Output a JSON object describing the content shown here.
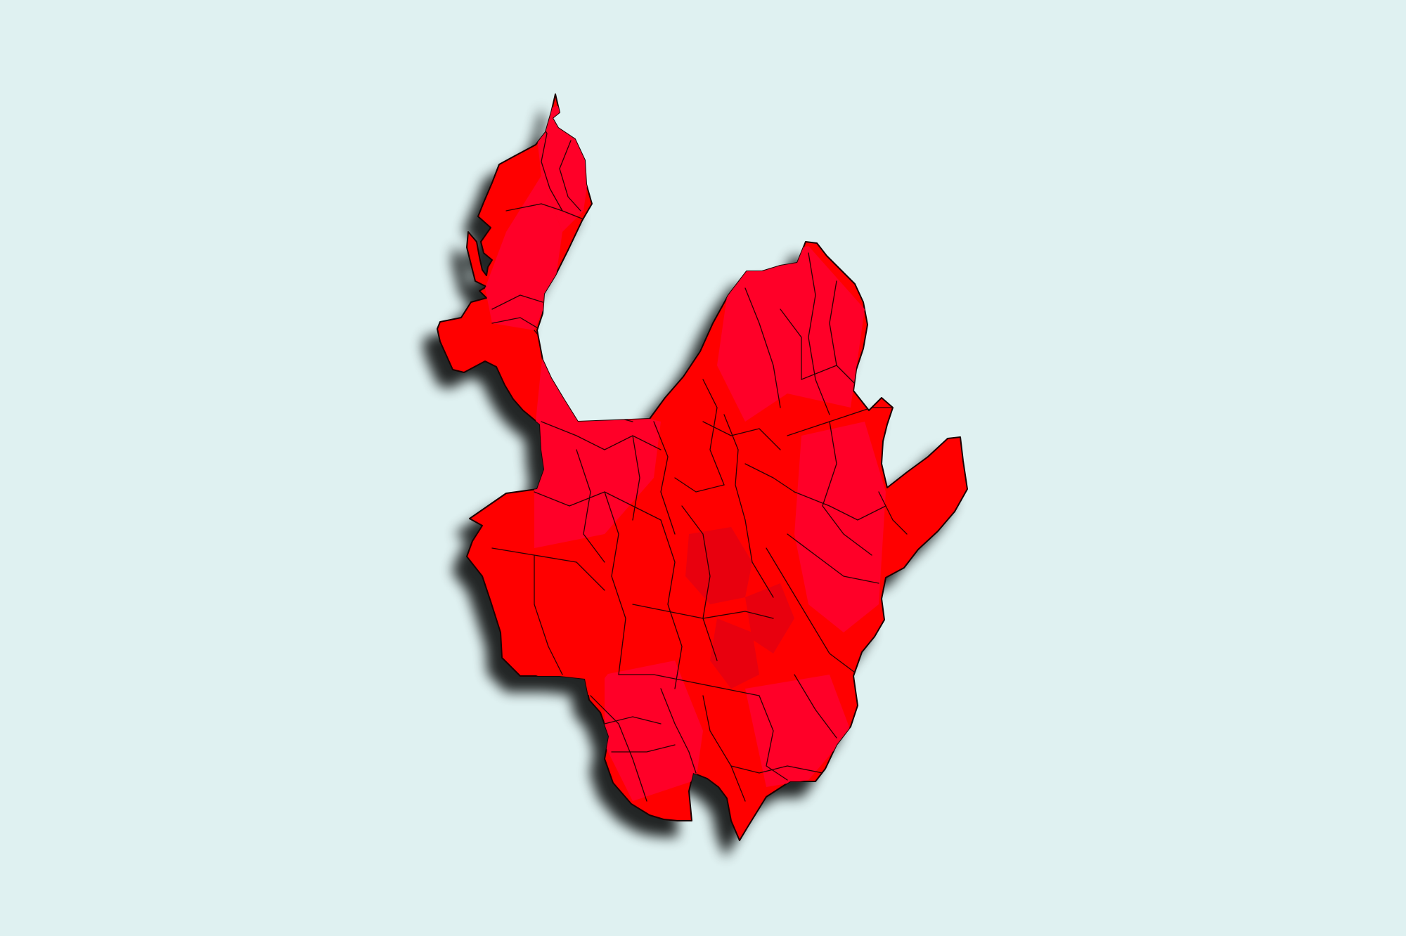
{
  "map": {
    "colors": {
      "background": "#dff1f1",
      "primary": "#ff0000",
      "secondary": "#ff0028",
      "dark": "#e8000e",
      "border": "#2a0000",
      "shadow": "#000000"
    }
  }
}
